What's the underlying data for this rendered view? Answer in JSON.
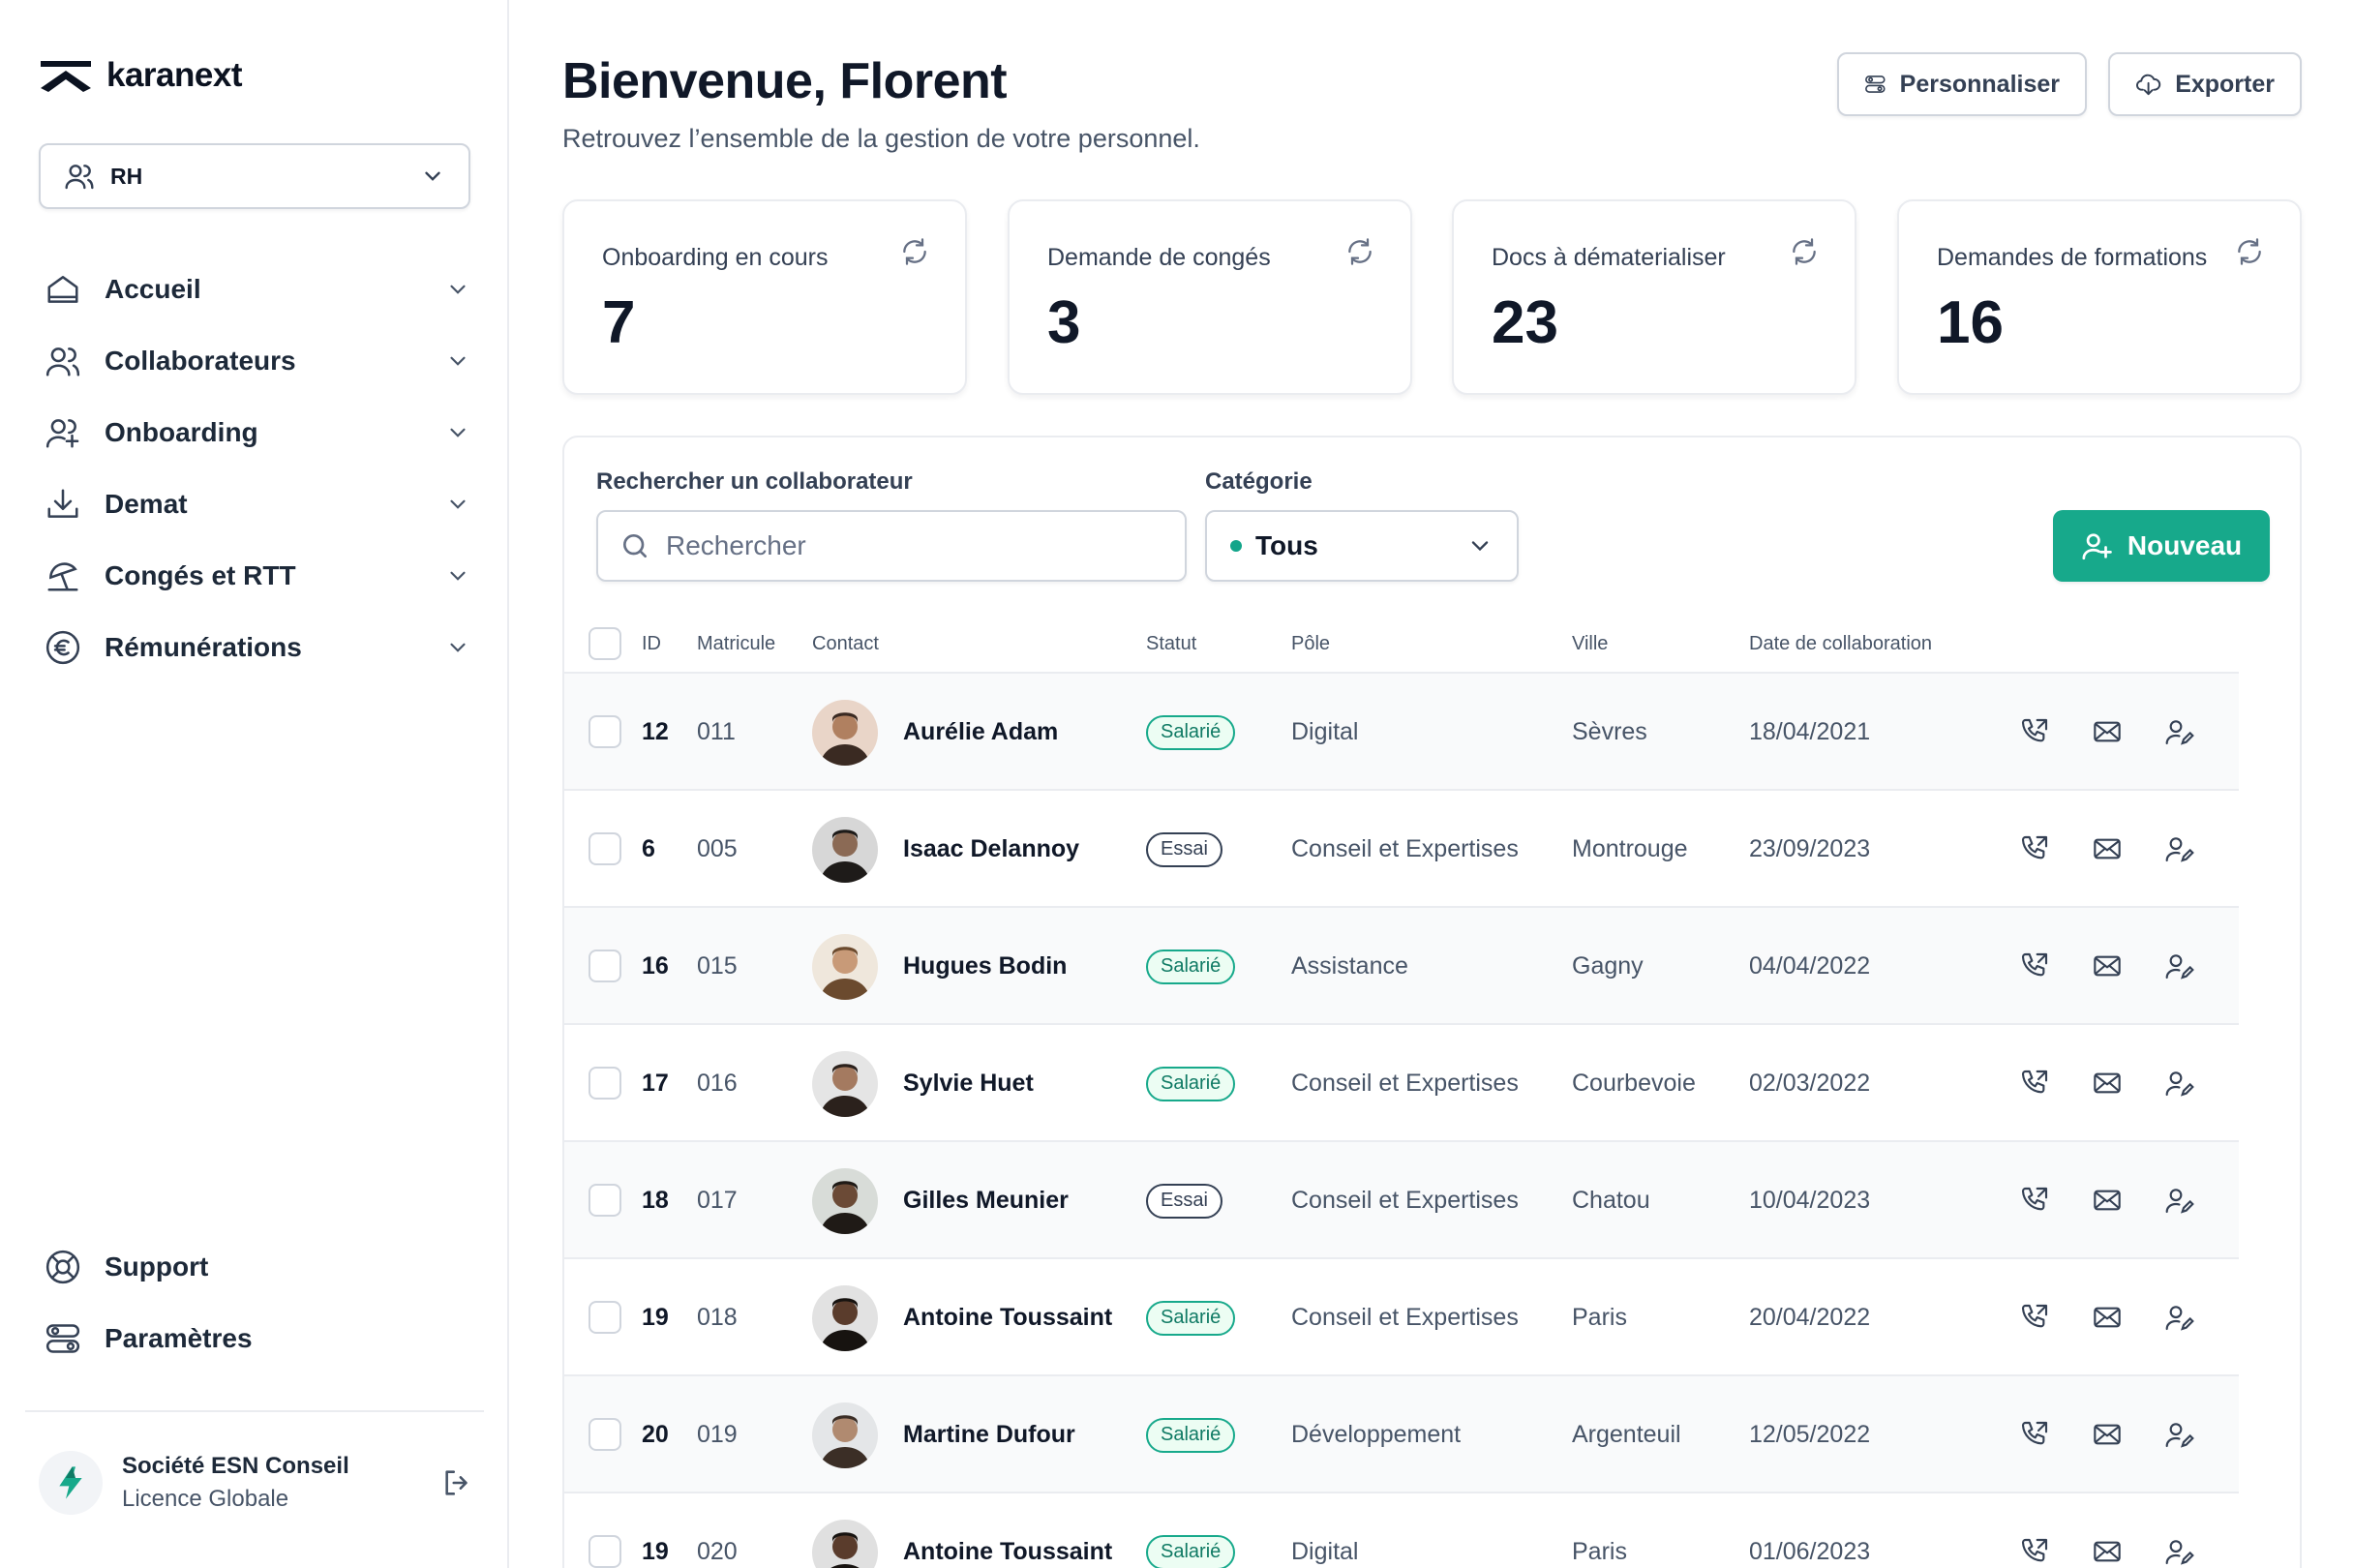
{
  "app": {
    "logo_text": "karanext"
  },
  "sidebar": {
    "role": "RH",
    "items": [
      {
        "label": "Accueil",
        "icon": "home-icon"
      },
      {
        "label": "Collaborateurs",
        "icon": "users-icon"
      },
      {
        "label": "Onboarding",
        "icon": "user-plus-icon"
      },
      {
        "label": "Demat",
        "icon": "download-icon"
      },
      {
        "label": "Congés et RTT",
        "icon": "umbrella-icon"
      },
      {
        "label": "Rémunérations",
        "icon": "euro-icon"
      }
    ],
    "bottom_items": [
      {
        "label": "Support",
        "icon": "lifebuoy-icon"
      },
      {
        "label": "Paramètres",
        "icon": "settings-icon"
      }
    ],
    "org": {
      "name": "Société ESN Conseil",
      "license": "Licence Globale"
    }
  },
  "header": {
    "title": "Bienvenue, Florent",
    "subtitle": "Retrouvez l’ensemble de la gestion de votre personnel.",
    "customize_label": "Personnaliser",
    "export_label": "Exporter"
  },
  "stats": [
    {
      "label": "Onboarding en cours",
      "value": "7"
    },
    {
      "label": "Demande de congés",
      "value": "3"
    },
    {
      "label": "Docs à dématerialiser",
      "value": "23"
    },
    {
      "label": "Demandes de formations",
      "value": "16"
    }
  ],
  "filters": {
    "search_label": "Rechercher un collaborateur",
    "search_placeholder": "Rechercher",
    "category_label": "Catégorie",
    "category_value": "Tous",
    "new_label": "Nouveau"
  },
  "table": {
    "headers": [
      "ID",
      "Matricule",
      "Contact",
      "Statut",
      "Pôle",
      "Ville",
      "Date de collaboration"
    ],
    "rows": [
      {
        "id": "12",
        "matricule": "011",
        "name": "Aurélie Adam",
        "status": "Salarié",
        "pole": "Digital",
        "ville": "Sèvres",
        "date": "18/04/2021"
      },
      {
        "id": "6",
        "matricule": "005",
        "name": "Isaac Delannoy",
        "status": "Essai",
        "pole": "Conseil et Expertises",
        "ville": "Montrouge",
        "date": "23/09/2023"
      },
      {
        "id": "16",
        "matricule": "015",
        "name": "Hugues Bodin",
        "status": "Salarié",
        "pole": "Assistance",
        "ville": "Gagny",
        "date": "04/04/2022"
      },
      {
        "id": "17",
        "matricule": "016",
        "name": "Sylvie Huet",
        "status": "Salarié",
        "pole": "Conseil et Expertises",
        "ville": "Courbevoie",
        "date": "02/03/2022"
      },
      {
        "id": "18",
        "matricule": "017",
        "name": "Gilles Meunier",
        "status": "Essai",
        "pole": "Conseil et Expertises",
        "ville": "Chatou",
        "date": "10/04/2023"
      },
      {
        "id": "19",
        "matricule": "018",
        "name": "Antoine Toussaint",
        "status": "Salarié",
        "pole": "Conseil et Expertises",
        "ville": "Paris",
        "date": "20/04/2022"
      },
      {
        "id": "20",
        "matricule": "019",
        "name": "Martine Dufour",
        "status": "Salarié",
        "pole": "Développement",
        "ville": "Argenteuil",
        "date": "12/05/2022"
      },
      {
        "id": "19",
        "matricule": "020",
        "name": "Antoine Toussaint",
        "status": "Salarié",
        "pole": "Digital",
        "ville": "Paris",
        "date": "01/06/2023"
      }
    ]
  },
  "colors": {
    "accent": "#17a98b",
    "text": "#101828",
    "muted": "#475467",
    "border": "#eaecf0"
  }
}
